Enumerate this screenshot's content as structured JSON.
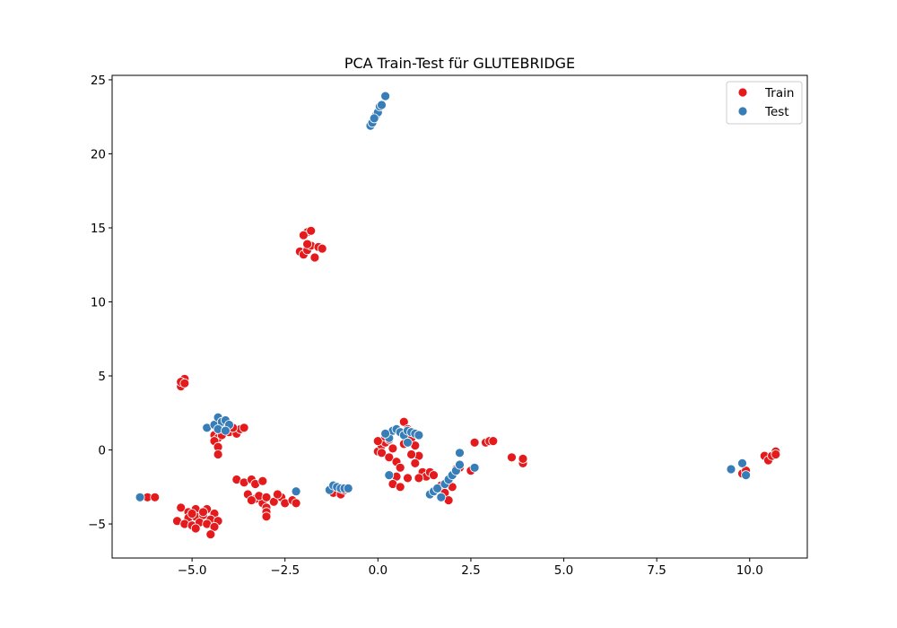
{
  "chart_data": {
    "type": "scatter",
    "title": "PCA Train-Test für GLUTEBRIDGE",
    "xlabel": "",
    "ylabel": "",
    "xlim": [
      -7.15,
      11.55
    ],
    "ylim": [
      -7.3,
      25.3
    ],
    "x_ticks": [
      -5.0,
      -2.5,
      0.0,
      2.5,
      5.0,
      7.5,
      10.0
    ],
    "x_tick_labels": [
      "−5.0",
      "−2.5",
      "0.0",
      "2.5",
      "5.0",
      "7.5",
      "10.0"
    ],
    "y_ticks": [
      -5,
      0,
      5,
      10,
      15,
      20,
      25
    ],
    "y_tick_labels": [
      "−5",
      "0",
      "5",
      "10",
      "15",
      "20",
      "25"
    ],
    "grid": false,
    "legend_position": "top-right",
    "series": [
      {
        "name": "Train",
        "color": "#e41a1c",
        "points": [
          [
            -5.3,
            4.3
          ],
          [
            -5.2,
            4.8
          ],
          [
            -5.3,
            4.6
          ],
          [
            -5.2,
            4.5
          ],
          [
            -5.3,
            -3.9
          ],
          [
            -5.1,
            -4.2
          ],
          [
            -4.9,
            -4.0
          ],
          [
            -4.6,
            -4.0
          ],
          [
            -4.4,
            -4.3
          ],
          [
            -5.4,
            -4.8
          ],
          [
            -5.1,
            -4.6
          ],
          [
            -4.9,
            -4.5
          ],
          [
            -4.7,
            -4.4
          ],
          [
            -4.5,
            -4.7
          ],
          [
            -4.3,
            -4.8
          ],
          [
            -5.2,
            -5.0
          ],
          [
            -5.0,
            -5.1
          ],
          [
            -4.8,
            -4.9
          ],
          [
            -4.6,
            -5.0
          ],
          [
            -4.4,
            -5.2
          ],
          [
            -4.5,
            -5.7
          ],
          [
            -4.9,
            -5.3
          ],
          [
            -4.7,
            -4.2
          ],
          [
            -5.0,
            -4.3
          ],
          [
            -6.2,
            -3.2
          ],
          [
            -6.0,
            -3.2
          ],
          [
            -4.4,
            1.0
          ],
          [
            -4.3,
            0.8
          ],
          [
            -4.2,
            1.0
          ],
          [
            -4.0,
            1.2
          ],
          [
            -3.8,
            1.1
          ],
          [
            -3.7,
            1.4
          ],
          [
            -3.6,
            1.5
          ],
          [
            -4.4,
            0.6
          ],
          [
            -4.3,
            0.2
          ],
          [
            -4.3,
            -0.3
          ],
          [
            -4.1,
            1.4
          ],
          [
            -3.9,
            1.5
          ],
          [
            -3.8,
            -2.0
          ],
          [
            -3.6,
            -2.2
          ],
          [
            -3.4,
            -2.0
          ],
          [
            -3.3,
            -2.3
          ],
          [
            -3.5,
            -3.0
          ],
          [
            -3.3,
            -3.3
          ],
          [
            -3.1,
            -3.6
          ],
          [
            -3.0,
            -3.9
          ],
          [
            -3.0,
            -4.2
          ],
          [
            -3.0,
            -4.5
          ],
          [
            -2.8,
            -3.5
          ],
          [
            -2.6,
            -3.2
          ],
          [
            -2.5,
            -3.6
          ],
          [
            -2.3,
            -3.4
          ],
          [
            -2.2,
            -3.6
          ],
          [
            -3.2,
            -3.1
          ],
          [
            -3.4,
            -3.4
          ],
          [
            -3.0,
            -3.2
          ],
          [
            -2.7,
            -3.0
          ],
          [
            -3.1,
            -2.1
          ],
          [
            -2.1,
            13.4
          ],
          [
            -2.0,
            13.2
          ],
          [
            -1.9,
            13.5
          ],
          [
            -1.8,
            13.8
          ],
          [
            -1.7,
            13.0
          ],
          [
            -1.6,
            13.7
          ],
          [
            -1.9,
            14.7
          ],
          [
            -2.0,
            14.5
          ],
          [
            -1.8,
            14.8
          ],
          [
            -1.9,
            13.9
          ],
          [
            -1.5,
            13.6
          ],
          [
            -1.2,
            -2.9
          ],
          [
            -1.0,
            -3.0
          ],
          [
            -0.9,
            -2.7
          ],
          [
            0.0,
            -0.1
          ],
          [
            0.1,
            0.3
          ],
          [
            0.2,
            0.5
          ],
          [
            0.3,
            0.7
          ],
          [
            0.0,
            0.6
          ],
          [
            0.1,
            -0.2
          ],
          [
            0.3,
            -0.5
          ],
          [
            0.4,
            0.1
          ],
          [
            0.5,
            -0.8
          ],
          [
            0.6,
            -1.2
          ],
          [
            0.5,
            -1.8
          ],
          [
            0.4,
            -2.3
          ],
          [
            0.6,
            -2.5
          ],
          [
            0.7,
            1.9
          ],
          [
            0.8,
            1.4
          ],
          [
            0.9,
            0.8
          ],
          [
            1.0,
            0.3
          ],
          [
            1.1,
            -0.4
          ],
          [
            1.0,
            -0.9
          ],
          [
            1.2,
            -1.5
          ],
          [
            1.3,
            -1.8
          ],
          [
            1.4,
            -1.5
          ],
          [
            1.5,
            -1.7
          ],
          [
            0.8,
            -1.9
          ],
          [
            1.1,
            -1.9
          ],
          [
            1.7,
            -2.4
          ],
          [
            1.8,
            -2.9
          ],
          [
            1.9,
            -3.4
          ],
          [
            2.0,
            -2.5
          ],
          [
            2.1,
            -1.3
          ],
          [
            2.2,
            -1.2
          ],
          [
            2.5,
            -1.4
          ],
          [
            2.6,
            0.5
          ],
          [
            2.9,
            0.5
          ],
          [
            3.0,
            0.6
          ],
          [
            3.1,
            0.6
          ],
          [
            3.6,
            -0.5
          ],
          [
            3.9,
            -0.9
          ],
          [
            3.9,
            -0.6
          ],
          [
            0.2,
            0.9
          ],
          [
            0.7,
            0.4
          ],
          [
            0.9,
            -0.3
          ],
          [
            9.8,
            -1.6
          ],
          [
            9.9,
            -1.4
          ],
          [
            10.4,
            -0.4
          ],
          [
            10.5,
            -0.7
          ],
          [
            10.6,
            -0.4
          ],
          [
            10.7,
            -0.1
          ],
          [
            10.7,
            -0.3
          ]
        ]
      },
      {
        "name": "Test",
        "color": "#377eb8",
        "points": [
          [
            -0.2,
            21.9
          ],
          [
            -0.15,
            22.1
          ],
          [
            -0.05,
            22.6
          ],
          [
            0.0,
            22.8
          ],
          [
            0.05,
            23.2
          ],
          [
            0.1,
            23.3
          ],
          [
            0.2,
            23.9
          ],
          [
            -0.1,
            22.4
          ],
          [
            -6.4,
            -3.2
          ],
          [
            -4.6,
            1.5
          ],
          [
            -4.4,
            1.7
          ],
          [
            -4.3,
            2.2
          ],
          [
            -4.2,
            1.9
          ],
          [
            -4.1,
            2.0
          ],
          [
            -4.0,
            1.7
          ],
          [
            -4.3,
            1.4
          ],
          [
            -4.1,
            1.3
          ],
          [
            -2.2,
            -2.8
          ],
          [
            -1.3,
            -2.7
          ],
          [
            -1.2,
            -2.4
          ],
          [
            -1.1,
            -2.5
          ],
          [
            -1.0,
            -2.6
          ],
          [
            -0.9,
            -2.6
          ],
          [
            -0.8,
            -2.6
          ],
          [
            0.3,
            0.8
          ],
          [
            0.4,
            1.3
          ],
          [
            0.5,
            1.4
          ],
          [
            0.6,
            1.2
          ],
          [
            0.7,
            1.0
          ],
          [
            0.8,
            1.3
          ],
          [
            0.9,
            1.2
          ],
          [
            1.0,
            1.1
          ],
          [
            1.1,
            1.0
          ],
          [
            0.2,
            1.1
          ],
          [
            0.8,
            0.5
          ],
          [
            0.3,
            -1.7
          ],
          [
            1.4,
            -3.0
          ],
          [
            1.5,
            -2.8
          ],
          [
            1.6,
            -2.6
          ],
          [
            1.7,
            -3.2
          ],
          [
            1.8,
            -2.3
          ],
          [
            1.9,
            -2.0
          ],
          [
            2.0,
            -1.7
          ],
          [
            2.1,
            -1.4
          ],
          [
            2.2,
            -1.0
          ],
          [
            2.2,
            -0.2
          ],
          [
            2.6,
            -1.2
          ],
          [
            9.5,
            -1.3
          ],
          [
            9.8,
            -0.9
          ],
          [
            9.9,
            -1.7
          ]
        ]
      }
    ],
    "legend": [
      "Train",
      "Test"
    ]
  }
}
